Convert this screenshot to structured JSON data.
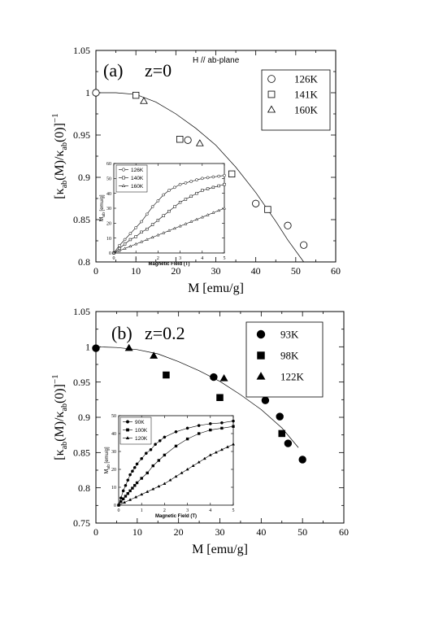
{
  "chart_data": [
    {
      "id": "a",
      "type": "scatter",
      "panel_label": "(a)",
      "composition_label": "z=0",
      "field_label": "H // ab-plane",
      "xlabel": "M [emu/g]",
      "ylabel_main": "[κ",
      "ylabel_sub1": "ab",
      "ylabel_mid": "(M)/κ",
      "ylabel_sub2": "ab",
      "ylabel_end": "(0)]",
      "ylabel_sup": "−1",
      "xlim": [
        0,
        60
      ],
      "ylim": [
        0.8,
        1.05
      ],
      "xticks": [
        0,
        10,
        20,
        30,
        40,
        50,
        60
      ],
      "yticks": [
        0.8,
        0.85,
        0.9,
        0.95,
        1,
        1.05
      ],
      "xtick_labels": [
        "0",
        "10",
        "20",
        "30",
        "40",
        "50",
        "60"
      ],
      "ytick_labels": [
        "0.8",
        "0.85",
        "0.9",
        "0.95",
        "1",
        "1.05"
      ],
      "legend_position": "top-right",
      "series": [
        {
          "name": "126K",
          "marker": "open-circle",
          "points": [
            [
              0,
              1.0
            ],
            [
              23,
              0.944
            ],
            [
              40,
              0.869
            ],
            [
              48,
              0.843
            ],
            [
              52,
              0.82
            ]
          ]
        },
        {
          "name": "141K",
          "marker": "open-square",
          "points": [
            [
              10,
              0.997
            ],
            [
              21,
              0.945
            ],
            [
              34,
              0.904
            ],
            [
              43,
              0.862
            ]
          ]
        },
        {
          "name": "160K",
          "marker": "open-triangle",
          "points": [
            [
              12,
              0.99
            ],
            [
              26,
              0.94
            ]
          ]
        }
      ],
      "fit_curve": [
        [
          0,
          1.0
        ],
        [
          5,
          1.0
        ],
        [
          10,
          0.998
        ],
        [
          15,
          0.989
        ],
        [
          20,
          0.975
        ],
        [
          25,
          0.958
        ],
        [
          30,
          0.938
        ],
        [
          35,
          0.912
        ],
        [
          40,
          0.882
        ],
        [
          45,
          0.848
        ],
        [
          48,
          0.826
        ],
        [
          52,
          0.8
        ]
      ],
      "inset": {
        "xlabel": "Magnetic Field (T)",
        "ylabel_main": "M",
        "ylabel_sub": "ab",
        "ylabel_unit": "[emu/g]",
        "xlim": [
          0,
          5
        ],
        "ylim": [
          0,
          60
        ],
        "xticks": [
          0,
          1,
          2,
          3,
          4,
          5
        ],
        "yticks": [
          0,
          10,
          20,
          30,
          40,
          50,
          60
        ],
        "xtick_labels": [
          "0",
          "1",
          "2",
          "3",
          "4",
          "5"
        ],
        "ytick_labels": [
          "0",
          "10",
          "20",
          "30",
          "40",
          "50",
          "60"
        ],
        "legend_position": "top-left",
        "series": [
          {
            "name": "126K",
            "marker": "open-circle",
            "points": [
              [
                0,
                0
              ],
              [
                0.25,
                5
              ],
              [
                0.5,
                9
              ],
              [
                0.75,
                13
              ],
              [
                1,
                17
              ],
              [
                1.25,
                21
              ],
              [
                1.5,
                26
              ],
              [
                1.75,
                31
              ],
              [
                2,
                35
              ],
              [
                2.25,
                39
              ],
              [
                2.5,
                42
              ],
              [
                2.75,
                44
              ],
              [
                3,
                46
              ],
              [
                3.25,
                47
              ],
              [
                3.5,
                48
              ],
              [
                3.75,
                49
              ],
              [
                4,
                50
              ],
              [
                4.25,
                50.5
              ],
              [
                4.5,
                51
              ],
              [
                4.75,
                51.5
              ],
              [
                5,
                52
              ]
            ]
          },
          {
            "name": "140K",
            "marker": "open-square",
            "points": [
              [
                0,
                0
              ],
              [
                0.25,
                3
              ],
              [
                0.5,
                6
              ],
              [
                0.75,
                9
              ],
              [
                1,
                11
              ],
              [
                1.25,
                14
              ],
              [
                1.5,
                16
              ],
              [
                1.75,
                19
              ],
              [
                2,
                22
              ],
              [
                2.25,
                25
              ],
              [
                2.5,
                28
              ],
              [
                2.75,
                31
              ],
              [
                3,
                34
              ],
              [
                3.25,
                36
              ],
              [
                3.5,
                38
              ],
              [
                3.75,
                40
              ],
              [
                4,
                42
              ],
              [
                4.25,
                43
              ],
              [
                4.5,
                44
              ],
              [
                4.75,
                45
              ],
              [
                5,
                46
              ]
            ]
          },
          {
            "name": "160K",
            "marker": "open-triangle",
            "points": [
              [
                0,
                0
              ],
              [
                0.25,
                1.5
              ],
              [
                0.5,
                3
              ],
              [
                0.75,
                4.5
              ],
              [
                1,
                6
              ],
              [
                1.25,
                7.5
              ],
              [
                1.5,
                9
              ],
              [
                1.75,
                10.5
              ],
              [
                2,
                12
              ],
              [
                2.25,
                13.5
              ],
              [
                2.5,
                15
              ],
              [
                2.75,
                16.5
              ],
              [
                3,
                18
              ],
              [
                3.25,
                19.5
              ],
              [
                3.5,
                21
              ],
              [
                3.75,
                22.5
              ],
              [
                4,
                24
              ],
              [
                4.25,
                25.5
              ],
              [
                4.5,
                27
              ],
              [
                4.75,
                28.5
              ],
              [
                5,
                30
              ]
            ]
          }
        ]
      }
    },
    {
      "id": "b",
      "type": "scatter",
      "panel_label": "(b)",
      "composition_label": "z=0.2",
      "xlabel": "M [emu/g]",
      "ylabel_main": "[κ",
      "ylabel_sub1": "ab",
      "ylabel_mid": "(M)/κ",
      "ylabel_sub2": "ab",
      "ylabel_end": "(0)]",
      "ylabel_sup": "−1",
      "xlim": [
        0,
        60
      ],
      "ylim": [
        0.75,
        1.05
      ],
      "xticks": [
        0,
        10,
        20,
        30,
        40,
        50,
        60
      ],
      "yticks": [
        0.75,
        0.8,
        0.85,
        0.9,
        0.95,
        1,
        1.05
      ],
      "xtick_labels": [
        "0",
        "10",
        "20",
        "30",
        "40",
        "50",
        "60"
      ],
      "ytick_labels": [
        "0.75",
        "0.8",
        "0.85",
        "0.9",
        "0.95",
        "1",
        "1.05"
      ],
      "legend_position": "top-right",
      "series": [
        {
          "name": "93K",
          "marker": "filled-circle",
          "points": [
            [
              0,
              0.998
            ],
            [
              28.5,
              0.957
            ],
            [
              41,
              0.924
            ],
            [
              44.5,
              0.901
            ],
            [
              46.5,
              0.863
            ],
            [
              50,
              0.84
            ]
          ]
        },
        {
          "name": "98K",
          "marker": "filled-square",
          "points": [
            [
              17,
              0.96
            ],
            [
              30,
              0.928
            ],
            [
              45,
              0.877
            ]
          ]
        },
        {
          "name": "122K",
          "marker": "filled-triangle",
          "points": [
            [
              8,
              0.998
            ],
            [
              14,
              0.987
            ],
            [
              31,
              0.955
            ]
          ]
        }
      ],
      "fit_curve": [
        [
          0,
          1.0
        ],
        [
          5,
          0.999
        ],
        [
          10,
          0.996
        ],
        [
          15,
          0.99
        ],
        [
          20,
          0.979
        ],
        [
          25,
          0.966
        ],
        [
          30,
          0.951
        ],
        [
          35,
          0.932
        ],
        [
          40,
          0.911
        ],
        [
          45,
          0.885
        ],
        [
          49,
          0.857
        ]
      ],
      "inset": {
        "xlabel": "Magnetic Field (T)",
        "ylabel_main": "M",
        "ylabel_sub": "ab",
        "ylabel_unit": "[emu/g]",
        "xlim": [
          0,
          5
        ],
        "ylim": [
          0,
          50
        ],
        "xticks": [
          0,
          1,
          2,
          3,
          4,
          5
        ],
        "yticks": [
          0,
          10,
          20,
          30,
          40,
          50
        ],
        "xtick_labels": [
          "0",
          "1",
          "2",
          "3",
          "4",
          "5"
        ],
        "ytick_labels": [
          "0",
          "10",
          "20",
          "30",
          "40",
          "50"
        ],
        "legend_position": "top-left",
        "series": [
          {
            "name": "90K",
            "marker": "filled-circle",
            "points": [
              [
                0,
                0
              ],
              [
                0.1,
                4
              ],
              [
                0.2,
                8
              ],
              [
                0.3,
                11
              ],
              [
                0.4,
                14
              ],
              [
                0.5,
                17
              ],
              [
                0.6,
                19
              ],
              [
                0.7,
                21
              ],
              [
                0.8,
                23
              ],
              [
                1,
                26
              ],
              [
                1.2,
                29
              ],
              [
                1.4,
                31
              ],
              [
                1.6,
                34
              ],
              [
                1.8,
                36
              ],
              [
                2,
                38
              ],
              [
                2.5,
                41
              ],
              [
                3,
                43
              ],
              [
                3.5,
                44.5
              ],
              [
                4,
                45.5
              ],
              [
                4.5,
                46
              ],
              [
                5,
                47
              ]
            ]
          },
          {
            "name": "100K",
            "marker": "filled-square",
            "points": [
              [
                0,
                0
              ],
              [
                0.1,
                2
              ],
              [
                0.2,
                3.5
              ],
              [
                0.3,
                5
              ],
              [
                0.4,
                6.5
              ],
              [
                0.5,
                8
              ],
              [
                0.6,
                9.5
              ],
              [
                0.7,
                11
              ],
              [
                0.8,
                12.5
              ],
              [
                1,
                15
              ],
              [
                1.25,
                18
              ],
              [
                1.5,
                22
              ],
              [
                1.75,
                25
              ],
              [
                2,
                28
              ],
              [
                2.5,
                33
              ],
              [
                3,
                37
              ],
              [
                3.5,
                40
              ],
              [
                4,
                42
              ],
              [
                4.5,
                43
              ],
              [
                5,
                44
              ]
            ]
          },
          {
            "name": "120K",
            "marker": "filled-triangle",
            "points": [
              [
                0,
                0
              ],
              [
                0.25,
                1.5
              ],
              [
                0.5,
                3
              ],
              [
                0.75,
                4.5
              ],
              [
                1,
                6
              ],
              [
                1.25,
                7.5
              ],
              [
                1.5,
                9
              ],
              [
                1.75,
                10.5
              ],
              [
                2,
                12
              ],
              [
                2.25,
                14
              ],
              [
                2.5,
                16
              ],
              [
                2.75,
                18
              ],
              [
                3,
                20
              ],
              [
                3.25,
                22
              ],
              [
                3.5,
                24
              ],
              [
                3.75,
                26
              ],
              [
                4,
                28
              ],
              [
                4.25,
                29.5
              ],
              [
                4.5,
                31
              ],
              [
                4.75,
                32.5
              ],
              [
                5,
                34
              ]
            ]
          }
        ]
      }
    }
  ]
}
